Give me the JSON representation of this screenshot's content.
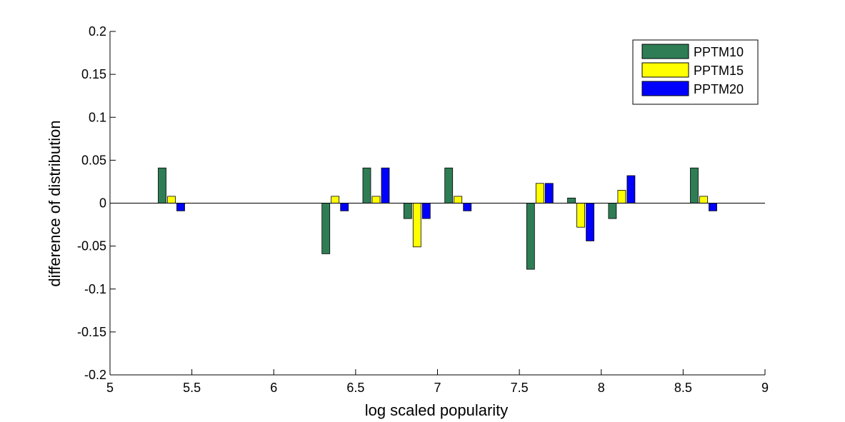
{
  "chart_data": {
    "type": "bar",
    "xlabel": "log scaled popularity",
    "ylabel": "difference of distribution",
    "xlim": [
      5,
      9
    ],
    "ylim": [
      -0.2,
      0.2
    ],
    "x_ticks": [
      "5",
      "5.5",
      "6",
      "6.5",
      "7",
      "7.5",
      "8",
      "8.5",
      "9"
    ],
    "y_ticks": [
      "-0.2",
      "-0.15",
      "-0.1",
      "-0.05",
      "0",
      "0.05",
      "0.1",
      "0.15",
      "0.2"
    ],
    "grid": false,
    "legend_position": "top-right",
    "x": [
      5.375,
      6.375,
      6.625,
      6.875,
      7.125,
      7.625,
      7.875,
      8.125,
      8.625
    ],
    "series": [
      {
        "name": "PPTM10",
        "color": "#2e7d55",
        "values": [
          0.041,
          -0.059,
          0.041,
          -0.018,
          0.041,
          -0.077,
          0.006,
          -0.018,
          0.041
        ]
      },
      {
        "name": "PPTM15",
        "color": "#ffff00",
        "values": [
          0.008,
          0.008,
          0.008,
          -0.051,
          0.008,
          0.023,
          -0.028,
          0.015,
          0.008
        ]
      },
      {
        "name": "PPTM20",
        "color": "#0000ff",
        "values": [
          -0.009,
          -0.009,
          0.041,
          -0.018,
          -0.009,
          0.023,
          -0.044,
          0.032,
          -0.009
        ]
      }
    ]
  }
}
